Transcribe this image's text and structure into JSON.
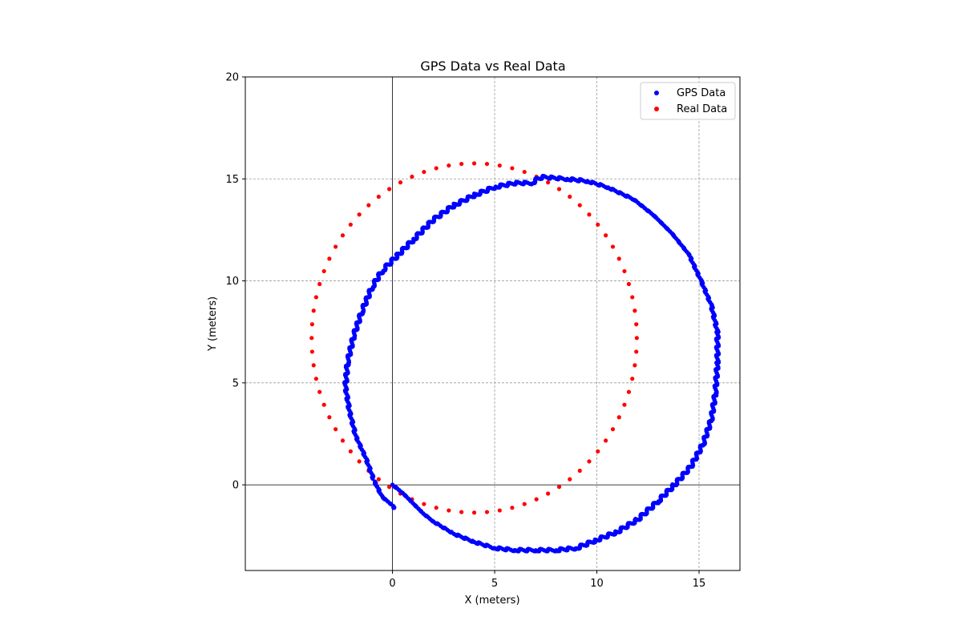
{
  "chart_data": {
    "type": "scatter",
    "title": "GPS Data vs Real Data",
    "xlabel": "X (meters)",
    "ylabel": "Y (meters)",
    "xlim": [
      -7.2,
      17.0
    ],
    "ylim": [
      -4.2,
      20.0
    ],
    "x_ticks": [
      0,
      5,
      10,
      15
    ],
    "y_ticks": [
      0,
      5,
      10,
      15,
      20
    ],
    "grid": true,
    "grid_style": "dashed",
    "origin_axes_lines": true,
    "legend": {
      "placement": "top-right",
      "entries": [
        "GPS Data",
        "Real Data"
      ]
    },
    "series": [
      {
        "name": "GPS Data",
        "color": "#0000ff",
        "marker": "dense-points",
        "path": [
          [
            0.0,
            0.0
          ],
          [
            0.5,
            -0.4
          ],
          [
            1.0,
            -0.9
          ],
          [
            1.5,
            -1.4
          ],
          [
            2.0,
            -1.8
          ],
          [
            3.0,
            -2.4
          ],
          [
            4.0,
            -2.8
          ],
          [
            5.0,
            -3.1
          ],
          [
            6.0,
            -3.2
          ],
          [
            7.0,
            -3.2
          ],
          [
            8.0,
            -3.2
          ],
          [
            9.0,
            -3.1
          ],
          [
            10.0,
            -2.7
          ],
          [
            11.0,
            -2.3
          ],
          [
            12.0,
            -1.7
          ],
          [
            13.0,
            -0.8
          ],
          [
            13.8,
            0.0
          ],
          [
            14.6,
            0.9
          ],
          [
            15.2,
            2.0
          ],
          [
            15.6,
            3.2
          ],
          [
            15.8,
            4.5
          ],
          [
            15.9,
            6.0
          ],
          [
            15.9,
            7.5
          ],
          [
            15.6,
            8.8
          ],
          [
            15.1,
            10.0
          ],
          [
            14.5,
            11.3
          ],
          [
            13.7,
            12.3
          ],
          [
            12.8,
            13.2
          ],
          [
            11.8,
            14.0
          ],
          [
            10.5,
            14.6
          ],
          [
            9.5,
            14.9
          ],
          [
            8.5,
            15.0
          ],
          [
            7.3,
            15.1
          ],
          [
            6.8,
            14.8
          ],
          [
            6.0,
            14.8
          ],
          [
            5.0,
            14.6
          ],
          [
            4.0,
            14.2
          ],
          [
            3.0,
            13.7
          ],
          [
            2.0,
            13.0
          ],
          [
            1.0,
            12.0
          ],
          [
            0.2,
            11.2
          ],
          [
            -0.5,
            10.5
          ],
          [
            -1.0,
            9.7
          ],
          [
            -1.5,
            8.5
          ],
          [
            -1.9,
            7.3
          ],
          [
            -2.2,
            6.0
          ],
          [
            -2.3,
            4.8
          ],
          [
            -2.1,
            3.6
          ],
          [
            -1.8,
            2.4
          ],
          [
            -1.3,
            1.3
          ],
          [
            -0.9,
            0.2
          ],
          [
            -0.5,
            -0.6
          ],
          [
            0.0,
            -1.0
          ],
          [
            0.1,
            -1.2
          ]
        ]
      },
      {
        "name": "Real Data",
        "color": "#ff0000",
        "marker": "dots",
        "center": [
          4.0,
          7.2
        ],
        "radius": 8.2,
        "x_scale": 0.97,
        "y_scale": 1.16,
        "point_count": 80
      }
    ]
  }
}
